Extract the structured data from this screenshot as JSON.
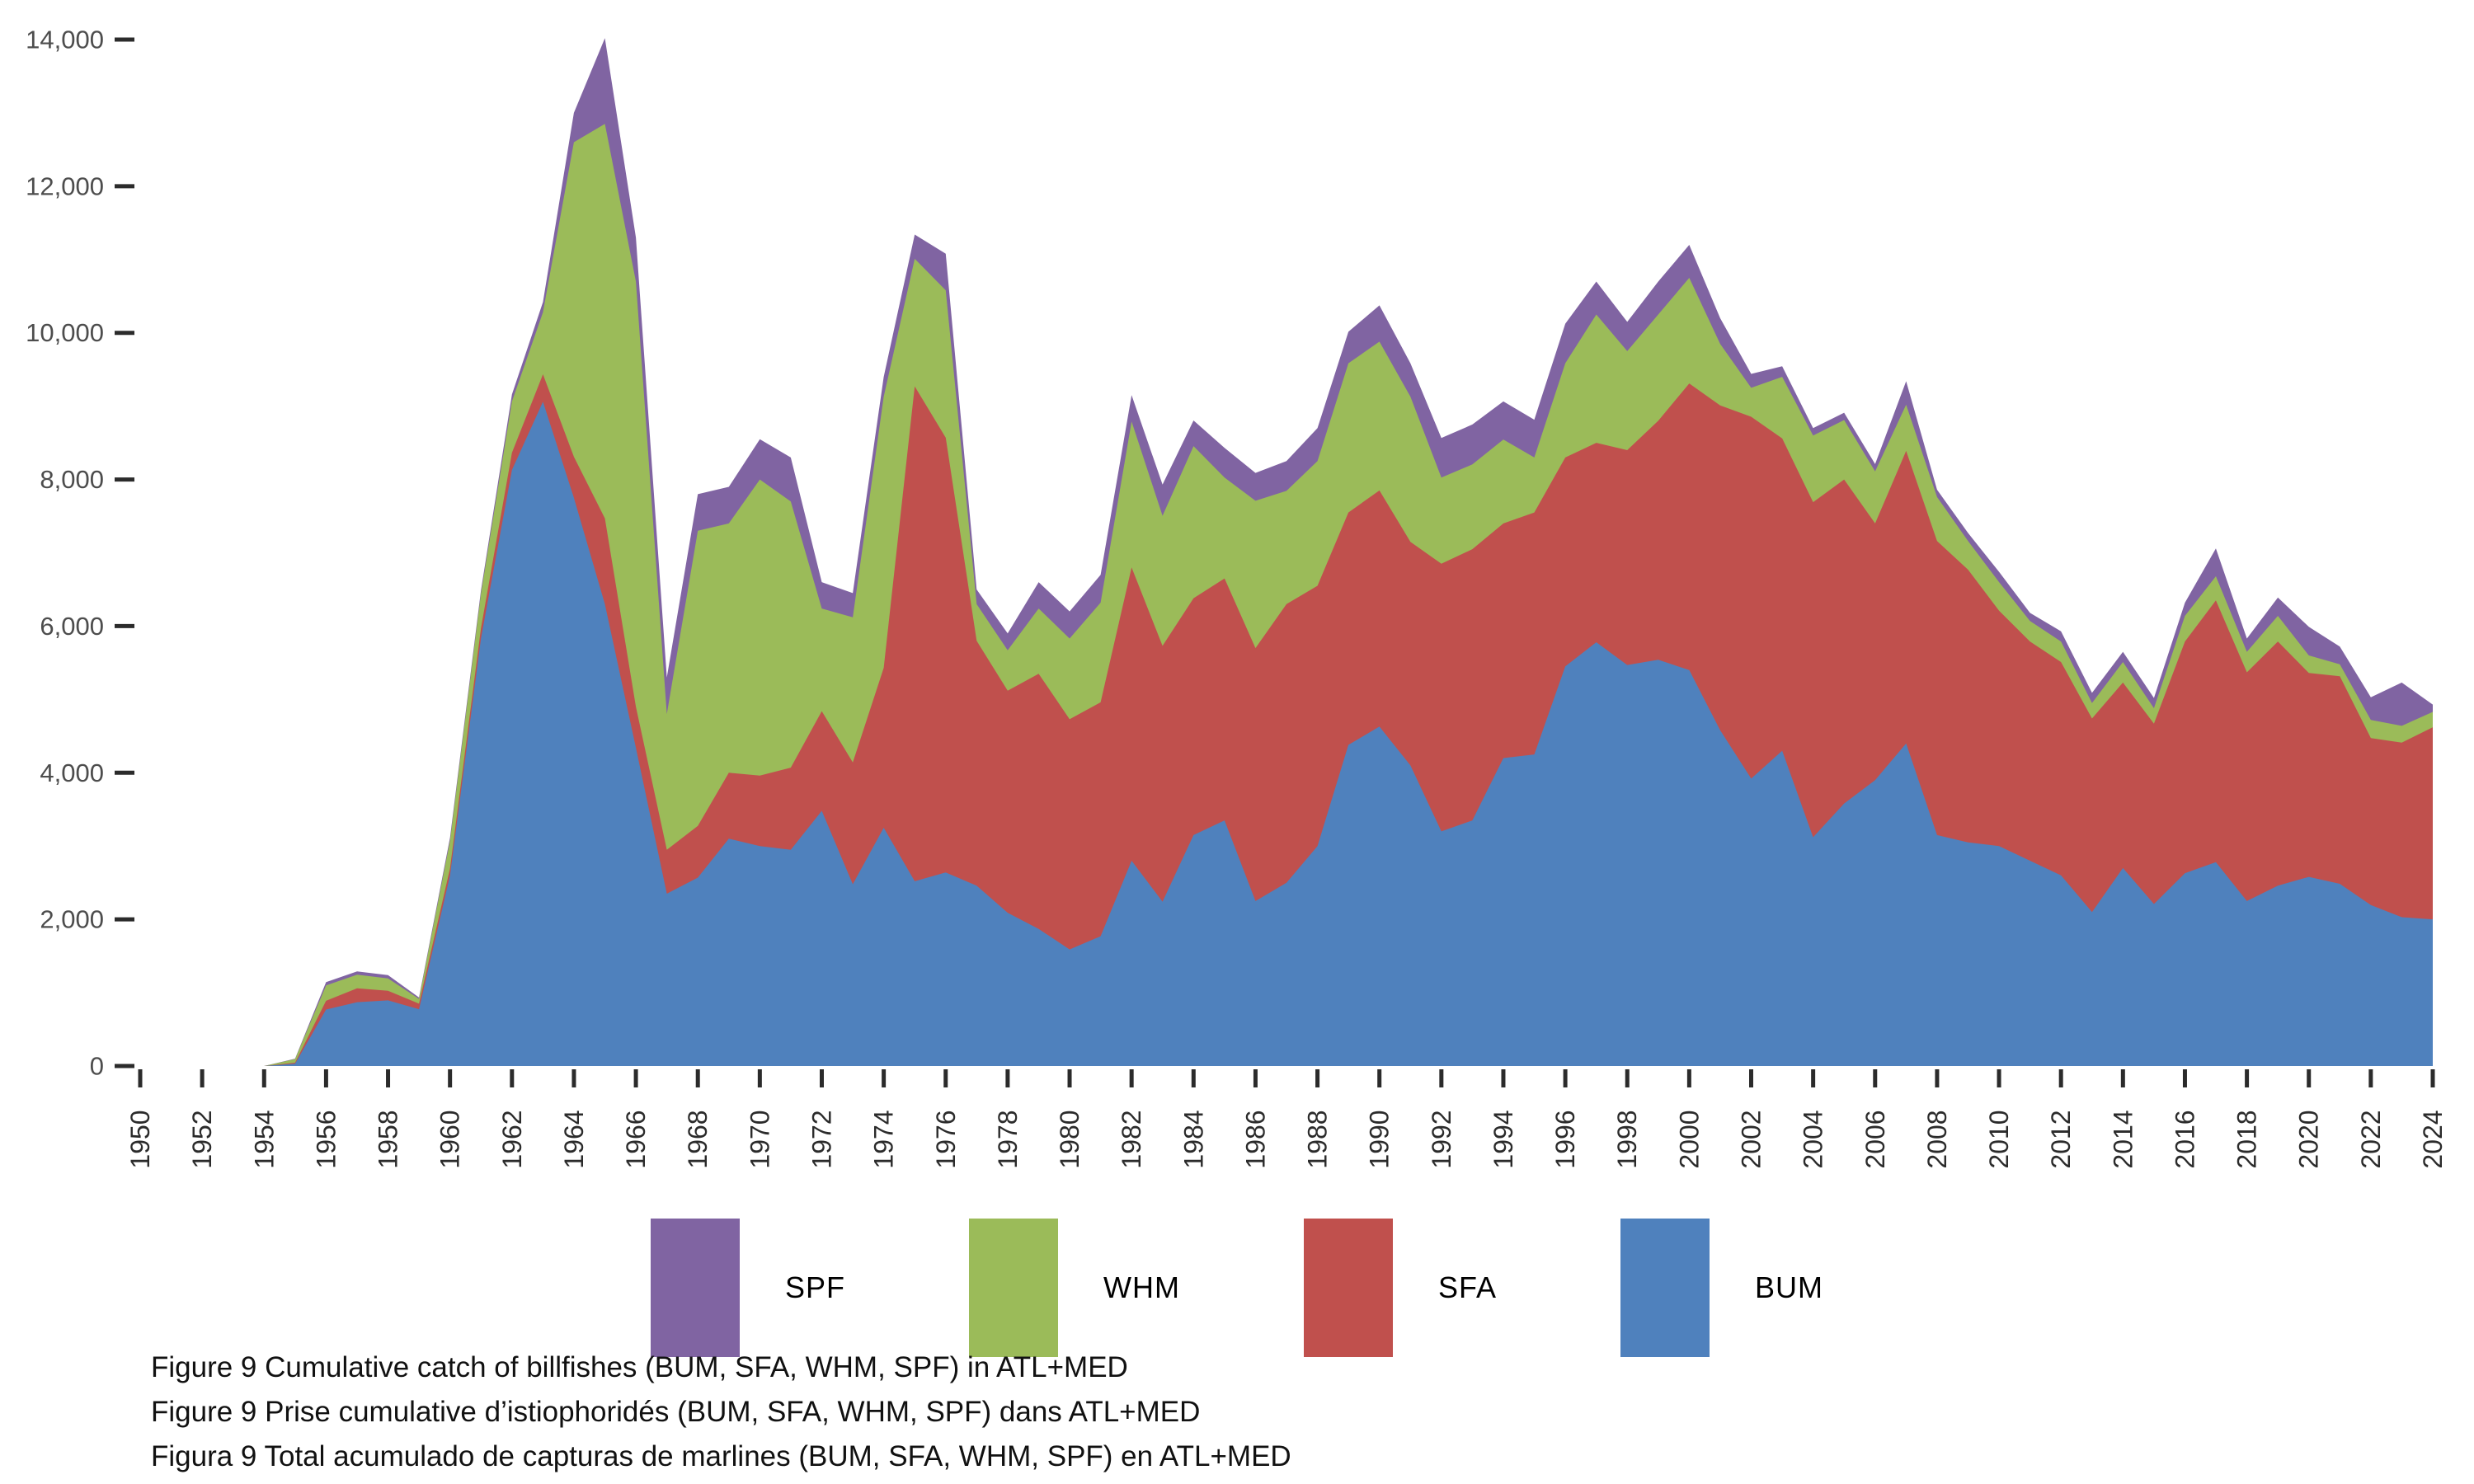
{
  "chart_data": {
    "type": "area",
    "stacked": true,
    "title": "",
    "xlabel": "",
    "ylabel": "",
    "x_start": 1950,
    "x_end": 2024,
    "x_tick_step": 2,
    "ylim": [
      0,
      14000
    ],
    "y_tick_values": [
      0,
      2000,
      4000,
      6000,
      8000,
      10000,
      12000,
      14000
    ],
    "y_tick_labels": [
      "0",
      "2,000",
      "4,000",
      "6,000",
      "8,000",
      "10,000",
      "12,000",
      "14,000"
    ],
    "grid": false,
    "legend_position": "bottom",
    "x": [
      1950,
      1951,
      1952,
      1953,
      1954,
      1955,
      1956,
      1957,
      1958,
      1959,
      1960,
      1961,
      1962,
      1963,
      1964,
      1965,
      1966,
      1967,
      1968,
      1969,
      1970,
      1971,
      1972,
      1973,
      1974,
      1975,
      1976,
      1977,
      1978,
      1979,
      1980,
      1981,
      1982,
      1983,
      1984,
      1985,
      1986,
      1987,
      1988,
      1989,
      1990,
      1991,
      1992,
      1993,
      1994,
      1995,
      1996,
      1997,
      1998,
      1999,
      2000,
      2001,
      2002,
      2003,
      2004,
      2005,
      2006,
      2007,
      2008,
      2009,
      2010,
      2011,
      2012,
      2013,
      2014,
      2015,
      2016,
      2017,
      2018,
      2019,
      2020,
      2021,
      2022,
      2023,
      2024
    ],
    "series": [
      {
        "name": "BUM",
        "color": "#4F81BD",
        "values": [
          0,
          0,
          0,
          0,
          0,
          30,
          770,
          870,
          895,
          775,
          2600,
          5830,
          8130,
          9060,
          7750,
          6300,
          4340,
          2350,
          2570,
          3100,
          3000,
          2950,
          3480,
          2480,
          3250,
          2520,
          2640,
          2460,
          2090,
          1870,
          1590,
          1770,
          2800,
          2240,
          3150,
          3350,
          2250,
          2500,
          3000,
          4380,
          4630,
          4100,
          3200,
          3350,
          4200,
          4250,
          5450,
          5780,
          5470,
          5540,
          5400,
          4580,
          3920,
          4300,
          3120,
          3580,
          3900,
          4400,
          3150,
          3050,
          3000,
          2800,
          2600,
          2100,
          2700,
          2210,
          2630,
          2780,
          2250,
          2460,
          2580,
          2485,
          2196,
          2030,
          2000
        ]
      },
      {
        "name": "SFA",
        "color": "#C0504D",
        "values": [
          0,
          0,
          0,
          0,
          0,
          15,
          120,
          190,
          130,
          75,
          95,
          140,
          235,
          375,
          560,
          1170,
          560,
          600,
          705,
          900,
          960,
          1120,
          1360,
          1660,
          2180,
          6750,
          5930,
          3340,
          3030,
          3480,
          3140,
          3190,
          4000,
          3490,
          3230,
          3300,
          3450,
          3800,
          3550,
          3170,
          3220,
          3050,
          3650,
          3700,
          3200,
          3300,
          2850,
          2720,
          2930,
          3260,
          3910,
          4430,
          4935,
          4260,
          4570,
          4420,
          3500,
          3990,
          4010,
          3720,
          3210,
          2990,
          2910,
          2640,
          2530,
          2460,
          3160,
          3570,
          3120,
          3330,
          2780,
          2830,
          2277,
          2380,
          2620
        ]
      },
      {
        "name": "WHM",
        "color": "#9BBB59",
        "values": [
          0,
          0,
          0,
          0,
          0,
          50,
          210,
          185,
          170,
          65,
          375,
          470,
          700,
          845,
          4290,
          5380,
          5800,
          1850,
          4025,
          3400,
          4040,
          3630,
          1400,
          1980,
          3700,
          1740,
          2010,
          500,
          550,
          890,
          1100,
          1360,
          1990,
          1775,
          2075,
          1375,
          2010,
          1545,
          1700,
          2035,
          2030,
          1980,
          1175,
          1155,
          1145,
          750,
          1285,
          1750,
          1350,
          1450,
          1440,
          840,
          395,
          840,
          910,
          810,
          710,
          630,
          600,
          390,
          390,
          280,
          280,
          210,
          280,
          210,
          350,
          330,
          280,
          350,
          240,
          165,
          247,
          230,
          210
        ]
      },
      {
        "name": "SPF",
        "color": "#8064A2",
        "values": [
          0,
          0,
          0,
          0,
          0,
          5,
          45,
          45,
          45,
          20,
          45,
          45,
          95,
          140,
          400,
          1170,
          600,
          500,
          500,
          500,
          550,
          600,
          360,
          330,
          270,
          330,
          500,
          200,
          230,
          360,
          370,
          380,
          360,
          425,
          350,
          405,
          380,
          405,
          450,
          430,
          495,
          455,
          540,
          545,
          520,
          515,
          540,
          450,
          400,
          450,
          450,
          350,
          190,
          145,
          100,
          100,
          100,
          320,
          100,
          110,
          140,
          110,
          140,
          140,
          140,
          140,
          180,
          380,
          180,
          250,
          390,
          240,
          310,
          590,
          100
        ]
      }
    ]
  },
  "legend": {
    "items": [
      {
        "label": "SPF",
        "color": "#8064A2"
      },
      {
        "label": "WHM",
        "color": "#9BBB59"
      },
      {
        "label": "SFA",
        "color": "#C0504D"
      },
      {
        "label": "BUM",
        "color": "#4F81BD"
      }
    ]
  },
  "captions": {
    "line1": "Figure 9 Cumulative catch of billfishes (BUM, SFA, WHM, SPF) in ATL+MED",
    "line2": "Figure 9 Prise cumulative d’istiophoridés (BUM, SFA, WHM, SPF) dans ATL+MED",
    "line3": "Figura 9 Total acumulado de capturas de marlines (BUM, SFA, WHM, SPF) en ATL+MED"
  },
  "style": {
    "axis_tick_color": "#2b2b2b",
    "y_label_color": "#4d4d4d",
    "x_label_color": "#2b2b2b",
    "background": "#ffffff"
  }
}
